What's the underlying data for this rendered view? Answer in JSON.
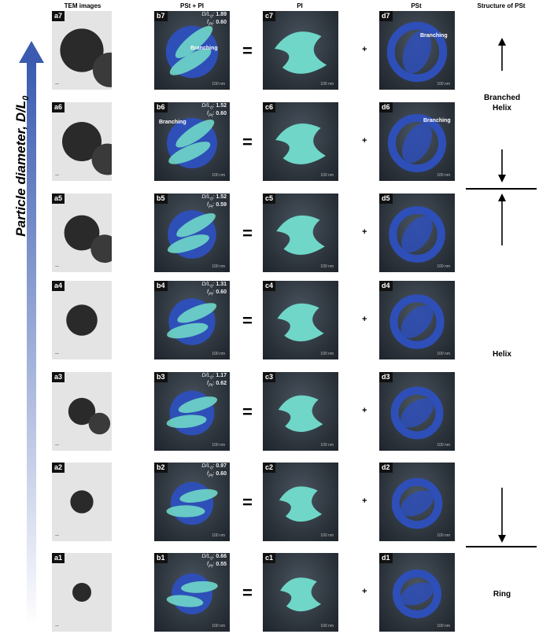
{
  "headers": {
    "tem": "TEM images",
    "b": "PSt + PI",
    "c": "PI",
    "d": "PSt",
    "structure": "Structure of PSt"
  },
  "axis_label": "Particle diameter, D/L",
  "axis_subscript": "0",
  "operators": {
    "equals": "=",
    "plus": "+"
  },
  "structures": {
    "branched_helix_line1": "Branched",
    "branched_helix_line2": "Helix",
    "helix": "Helix",
    "ring": "Ring"
  },
  "branching_label": "Branching",
  "colors": {
    "pst": "#2e4fb8",
    "pi": "#6fd6c8",
    "background": "#2c333b",
    "arrow": "#3a5bb0"
  },
  "rows": [
    {
      "a": "a7",
      "b": "b7",
      "c": "c7",
      "d": "d7",
      "ratio_key": "D/L",
      "ratio": "1.89",
      "f_key": "f",
      "f": "0.60"
    },
    {
      "a": "a6",
      "b": "b6",
      "c": "c6",
      "d": "d6",
      "ratio_key": "D/L",
      "ratio": "1.52",
      "f_key": "f",
      "f": "0.60"
    },
    {
      "a": "a5",
      "b": "b5",
      "c": "c5",
      "d": "d5",
      "ratio_key": "D/L",
      "ratio": "1.52",
      "f_key": "f",
      "f": "0.59"
    },
    {
      "a": "a4",
      "b": "b4",
      "c": "c4",
      "d": "d4",
      "ratio_key": "D/L",
      "ratio": "1.31",
      "f_key": "f",
      "f": "0.60"
    },
    {
      "a": "a3",
      "b": "b3",
      "c": "c3",
      "d": "d3",
      "ratio_key": "D/L",
      "ratio": "1.17",
      "f_key": "f",
      "f": "0.62"
    },
    {
      "a": "a2",
      "b": "b2",
      "c": "c2",
      "d": "d2",
      "ratio_key": "D/L",
      "ratio": "0.97",
      "f_key": "f",
      "f": "0.60"
    },
    {
      "a": "a1",
      "b": "b1",
      "c": "c1",
      "d": "d1",
      "ratio_key": "D/L",
      "ratio": "0.66",
      "f_key": "f",
      "f": "0.55"
    }
  ]
}
